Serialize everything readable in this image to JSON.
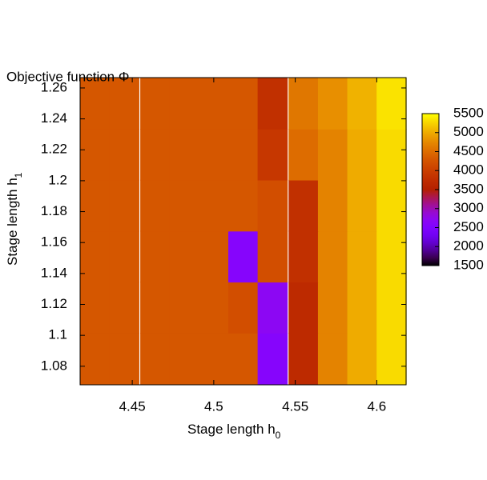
{
  "chart_data": {
    "type": "heatmap",
    "title": "Objective function Φ",
    "x_label": {
      "text": "Stage length h",
      "subscript": "0"
    },
    "y_label": {
      "text": "Stage length h",
      "subscript": "1"
    },
    "x": [
      4.427,
      4.445,
      4.464,
      4.482,
      4.5,
      4.518,
      4.536,
      4.555,
      4.573,
      4.591,
      4.609
    ],
    "y": [
      1.085,
      1.118,
      1.151,
      1.184,
      1.217,
      1.25
    ],
    "z": [
      [
        4300,
        4300,
        4300,
        4300,
        4300,
        4300,
        2600,
        3700,
        4700,
        5000,
        5300
      ],
      [
        4300,
        4300,
        4300,
        4300,
        4300,
        4200,
        2700,
        3700,
        4700,
        5000,
        5300
      ],
      [
        4300,
        4300,
        4300,
        4300,
        4300,
        2600,
        4200,
        3800,
        4700,
        5000,
        5300
      ],
      [
        4300,
        4300,
        4300,
        4300,
        4300,
        4300,
        4200,
        3800,
        4700,
        5000,
        5300
      ],
      [
        4300,
        4300,
        4300,
        4300,
        4300,
        4300,
        3900,
        4500,
        4700,
        5000,
        5300
      ],
      [
        4300,
        4300,
        4300,
        4300,
        4300,
        4300,
        3800,
        4600,
        4800,
        5050,
        5350
      ]
    ],
    "xlim": [
      4.418,
      4.618
    ],
    "xticks": [
      4.45,
      4.5,
      4.55,
      4.6
    ],
    "ylim": [
      1.068,
      1.2667
    ],
    "yticks": [
      1.08,
      1.1,
      1.12,
      1.14,
      1.16,
      1.18,
      1.2,
      1.22,
      1.24,
      1.26
    ],
    "zlim": [
      1500,
      5500
    ],
    "zticks": [
      1500,
      2000,
      2500,
      3000,
      3500,
      4000,
      4500,
      5000,
      5500
    ]
  }
}
